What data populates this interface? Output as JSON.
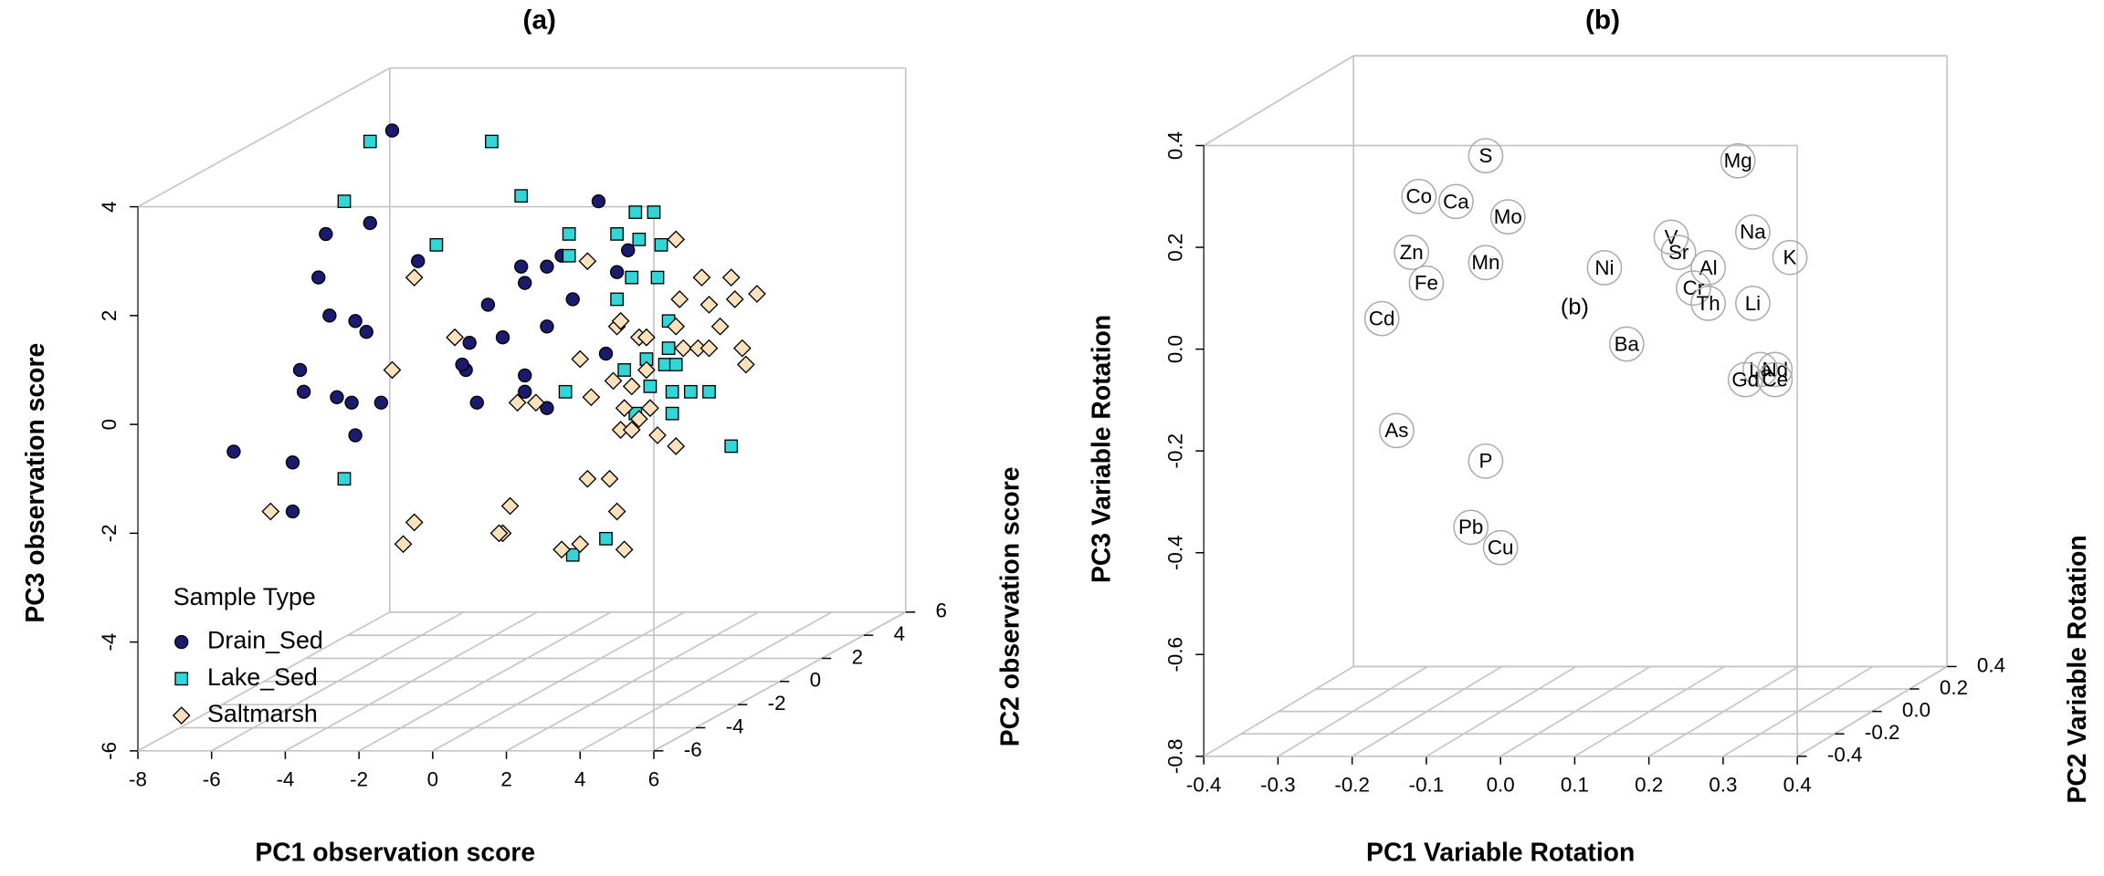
{
  "chart_data": [
    {
      "type": "scatter3d",
      "title": "(a)",
      "xlabel": "PC1 observation score",
      "ylabel": "PC2 observation score",
      "zlabel": "PC3 observation score",
      "xlim": [
        -8,
        6
      ],
      "ylim": [
        -6,
        6
      ],
      "zlim": [
        -6,
        4
      ],
      "xticks": [
        -8,
        -6,
        -4,
        -2,
        0,
        2,
        4,
        6
      ],
      "yticks": [
        -6,
        -4,
        -2,
        0,
        2,
        4,
        6
      ],
      "zticks": [
        -6,
        -4,
        -2,
        0,
        2,
        4
      ],
      "grid": true,
      "legend_title": "Sample Type",
      "legend": "bottom-left",
      "series": [
        {
          "name": "Drain_Sed",
          "color": "#1a1a6e",
          "marker": "circle",
          "x": [
            -1.1,
            -1.7,
            -2.9,
            -3.1,
            -2.8,
            -2.1,
            -1.8,
            -3.6,
            -3.5,
            -2.6,
            -2.2,
            -1.4,
            -2.1,
            -5.4,
            -3.8,
            -3.8,
            -0.4,
            1.5,
            2.4,
            2.5,
            3.1,
            3.5,
            4.5,
            5.0,
            3.1,
            1.9,
            1.0,
            0.9,
            0.8,
            1.2,
            2.5,
            2.5,
            3.1,
            4.7,
            3.8,
            5.3
          ],
          "values": [
            5.4,
            3.7,
            3.5,
            2.7,
            2.0,
            1.9,
            1.7,
            1.0,
            0.6,
            0.5,
            0.4,
            0.4,
            -0.2,
            -0.5,
            -0.7,
            -1.6,
            3.0,
            2.2,
            2.9,
            2.6,
            2.9,
            3.1,
            4.1,
            2.8,
            1.8,
            1.6,
            1.5,
            1.0,
            1.1,
            0.4,
            0.9,
            0.6,
            0.3,
            1.3,
            2.3,
            3.2
          ]
        },
        {
          "name": "Lake_Sed",
          "color": "#33d6d6",
          "marker": "square",
          "x": [
            -1.7,
            1.6,
            -2.4,
            0.1,
            2.4,
            3.7,
            3.7,
            5.5,
            6.0,
            5.0,
            6.2,
            5.6,
            6.1,
            5.4,
            5.0,
            6.4,
            6.4,
            5.8,
            6.3,
            5.2,
            5.9,
            5.5,
            6.5,
            6.5,
            7.0,
            7.5,
            6.6,
            3.6,
            -2.4,
            8.1,
            3.8,
            4.7
          ],
          "values": [
            5.2,
            5.2,
            4.1,
            3.3,
            4.2,
            3.5,
            3.1,
            3.9,
            3.9,
            3.5,
            3.3,
            3.4,
            2.7,
            2.7,
            2.3,
            1.9,
            1.4,
            1.2,
            1.1,
            1.0,
            0.7,
            0.2,
            0.6,
            0.2,
            0.6,
            0.6,
            1.1,
            0.6,
            -1.0,
            -0.4,
            -2.4,
            -2.1
          ]
        },
        {
          "name": "Saltmarsh",
          "color": "#fbe2bd",
          "marker": "diamond",
          "x": [
            -0.5,
            4.2,
            6.6,
            -1.1,
            0.6,
            2.3,
            2.8,
            4.0,
            4.3,
            5.0,
            5.1,
            5.6,
            5.8,
            4.9,
            5.4,
            5.2,
            5.1,
            5.6,
            5.4,
            6.1,
            6.6,
            5.8,
            5.9,
            6.7,
            6.6,
            7.3,
            6.8,
            7.2,
            8.1,
            7.5,
            8.2,
            8.8,
            8.4,
            8.5,
            7.5,
            7.8,
            4.2,
            4.8,
            5.0,
            2.1,
            1.9,
            -0.5,
            -0.8,
            -4.4,
            1.8,
            3.5,
            5.2,
            4.0
          ],
          "values": [
            2.7,
            3.0,
            3.4,
            1.0,
            1.6,
            0.4,
            0.4,
            1.2,
            0.5,
            1.8,
            1.9,
            1.6,
            1.6,
            0.8,
            0.7,
            0.3,
            -0.1,
            0.1,
            -0.1,
            -0.2,
            -0.4,
            1.0,
            0.3,
            2.3,
            1.8,
            2.7,
            1.4,
            1.4,
            2.7,
            2.2,
            2.3,
            2.4,
            1.4,
            1.1,
            1.4,
            1.8,
            -1.0,
            -1.0,
            -1.6,
            -1.5,
            -2.0,
            -1.8,
            -2.2,
            -1.6,
            -2.0,
            -2.3,
            -2.3,
            -2.2
          ]
        }
      ]
    },
    {
      "type": "labeled3d",
      "title": "(b)",
      "xlabel": "PC1 Variable Rotation",
      "ylabel": "PC2 Variable Rotation",
      "zlabel": "PC3 Variable Rotation",
      "xlim": [
        -0.4,
        0.4
      ],
      "ylim": [
        -0.4,
        0.4
      ],
      "zlim": [
        -0.8,
        0.4
      ],
      "xticks": [
        -0.4,
        -0.3,
        -0.2,
        -0.1,
        {
          "value": 0,
          "label": "0.0"
        },
        0.1,
        0.2,
        0.3,
        0.4
      ],
      "yticks": [
        -0.4,
        -0.2,
        {
          "value": 0,
          "label": "0.0"
        },
        0.2,
        0.4
      ],
      "zticks": [
        -0.8,
        -0.6,
        -0.4,
        -0.2,
        {
          "value": 0,
          "label": "0.0"
        },
        0.2,
        0.4
      ],
      "grid": true,
      "color": "#aaaaaa",
      "labels": [
        "S",
        "Co",
        "Ca",
        "Mo",
        "Zn",
        "Fe",
        "Mn",
        "Cd",
        "Ni",
        "Ba",
        "V",
        "Sr",
        "Al",
        "Cr",
        "Th",
        "Mg",
        "Na",
        "K",
        "Li",
        "La",
        "Nd",
        "Gd",
        "Ce",
        "As",
        "P",
        "Pb",
        "Cu"
      ],
      "x": [
        -0.02,
        -0.11,
        -0.06,
        0.01,
        -0.12,
        -0.1,
        -0.02,
        -0.16,
        0.14,
        0.17,
        0.23,
        0.24,
        0.28,
        0.26,
        0.28,
        0.32,
        0.34,
        0.39,
        0.34,
        0.35,
        0.37,
        0.33,
        0.37,
        -0.14,
        -0.02,
        -0.04,
        0.0
      ],
      "values": [
        0.38,
        0.3,
        0.29,
        0.26,
        0.19,
        0.13,
        0.17,
        0.06,
        0.16,
        0.01,
        0.22,
        0.19,
        0.16,
        0.12,
        0.09,
        0.37,
        0.23,
        0.18,
        0.09,
        -0.04,
        -0.04,
        -0.06,
        -0.06,
        -0.16,
        -0.22,
        -0.35,
        -0.39
      ],
      "annotations": [
        {
          "text": "(b)",
          "x": 0.1,
          "z": 0.08
        }
      ]
    }
  ]
}
